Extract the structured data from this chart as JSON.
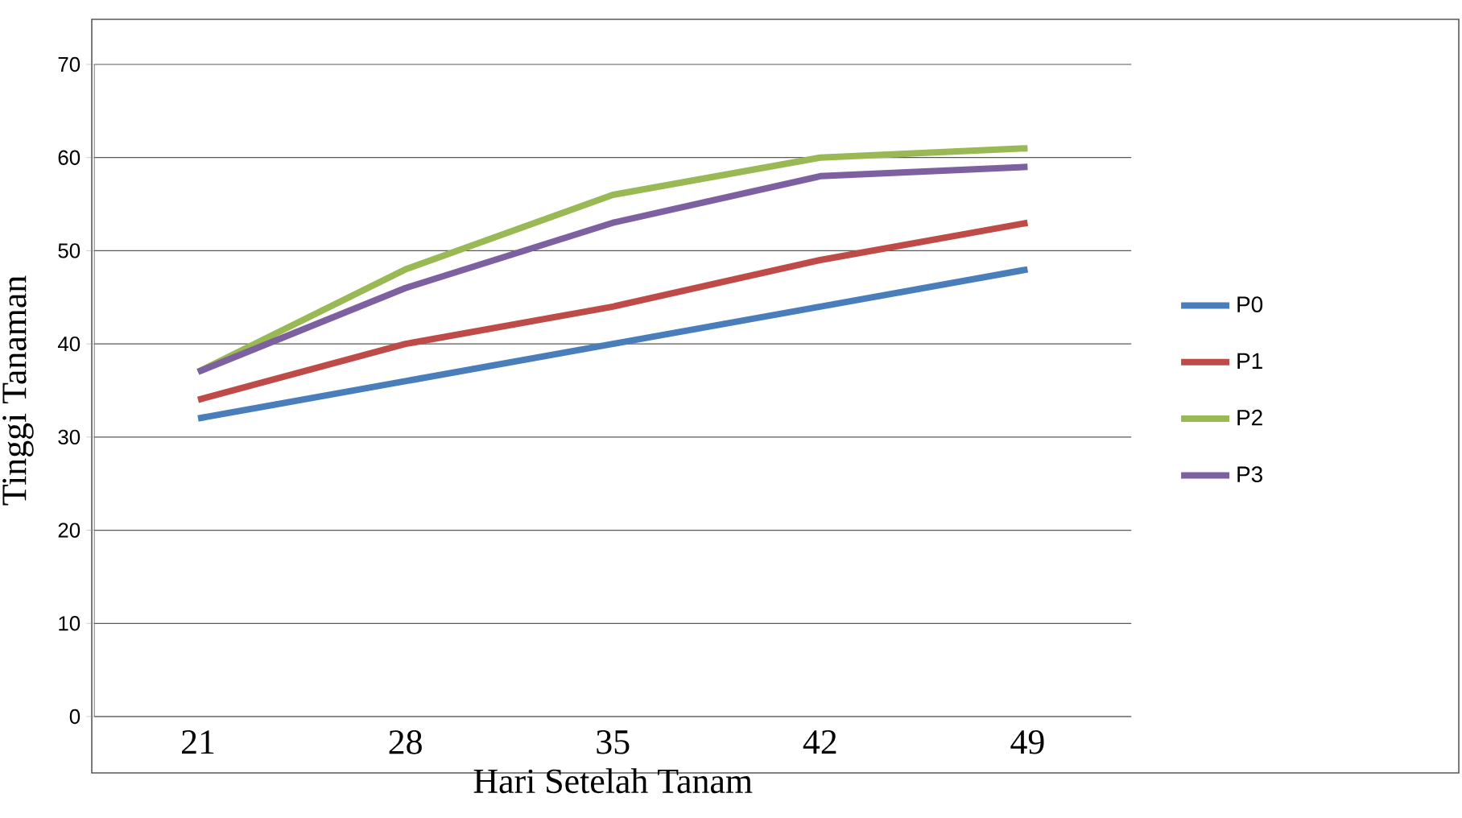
{
  "chart_data": {
    "type": "line",
    "xlabel": "Hari Setelah Tanam",
    "ylabel": "Tinggi Tanaman",
    "categories": [
      "21",
      "28",
      "35",
      "42",
      "49"
    ],
    "series": [
      {
        "name": "P0",
        "color": "#4a7ebb",
        "values": [
          32,
          36,
          40,
          44,
          48
        ]
      },
      {
        "name": "P1",
        "color": "#be4b48",
        "values": [
          34,
          40,
          44,
          49,
          53
        ]
      },
      {
        "name": "P2",
        "color": "#98b954",
        "values": [
          37,
          48,
          56,
          60,
          61
        ]
      },
      {
        "name": "P3",
        "color": "#7d60a0",
        "values": [
          37,
          46,
          53,
          58,
          59
        ]
      }
    ],
    "ylim": [
      0,
      70
    ],
    "yticks": [
      0,
      10,
      20,
      30,
      40,
      50,
      60,
      70
    ],
    "grid": "y",
    "legend": "right",
    "marker": "none",
    "line_style": "solid"
  }
}
